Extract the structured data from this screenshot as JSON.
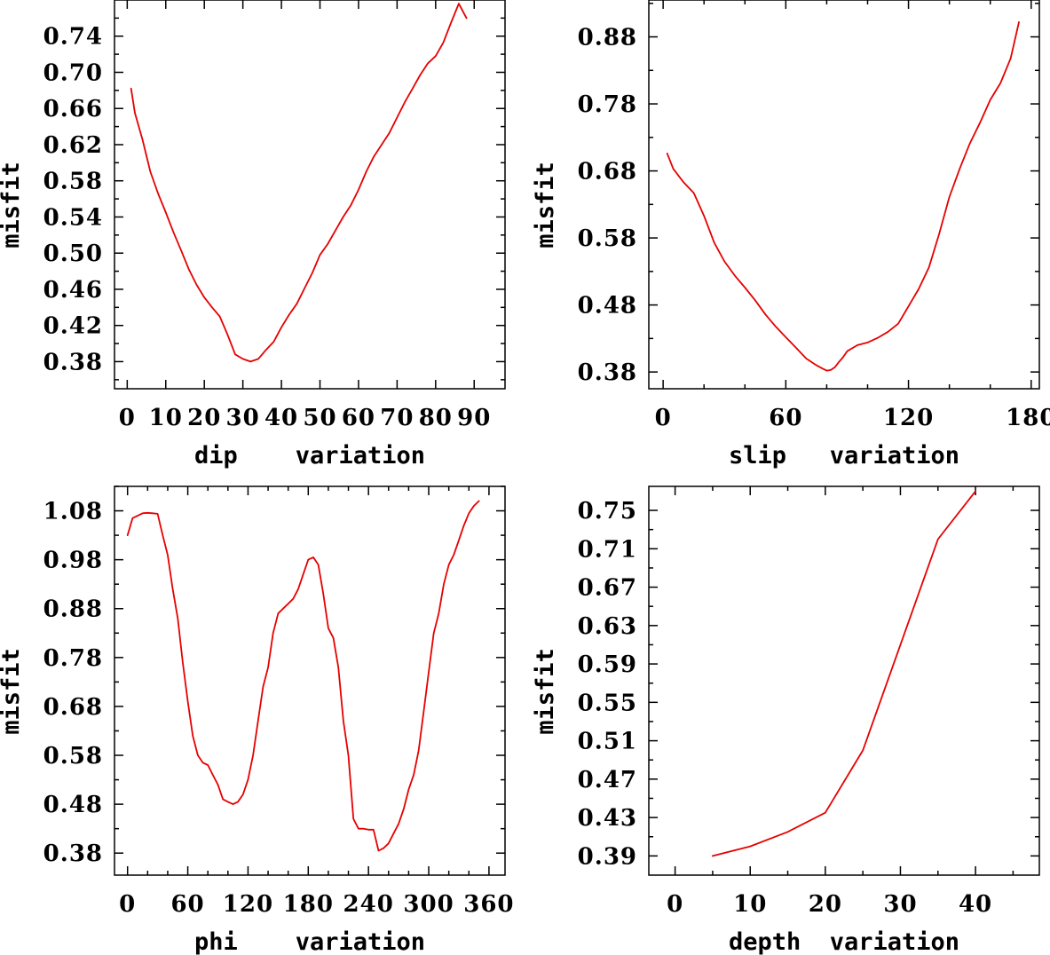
{
  "figure": {
    "line_color": "#e60000"
  },
  "chart_data": [
    {
      "type": "line",
      "title": "",
      "xlabel": "dip    variation",
      "ylabel": "misfit",
      "xlim": [
        -3.3,
        98
      ],
      "ylim": [
        0.35,
        0.78
      ],
      "xticks": [
        0,
        10,
        20,
        30,
        40,
        50,
        60,
        70,
        80,
        90
      ],
      "xtick_labels": [
        "0",
        "10",
        "20",
        "30",
        "40",
        "50",
        "60",
        "70",
        "80",
        "90"
      ],
      "xminor": [],
      "yticks": [
        0.38,
        0.42,
        0.46,
        0.5,
        0.54,
        0.58,
        0.62,
        0.66,
        0.7,
        0.74
      ],
      "ytick_labels": [
        "0.38",
        "0.42",
        "0.46",
        "0.50",
        "0.54",
        "0.58",
        "0.62",
        "0.66",
        "0.70",
        "0.74"
      ],
      "yminor": [
        0.36,
        0.4,
        0.44,
        0.48,
        0.52,
        0.56,
        0.6,
        0.64,
        0.68,
        0.72,
        0.76
      ],
      "series": [
        {
          "name": "misfit",
          "x": [
            1,
            2,
            4,
            6,
            8,
            10,
            12,
            14,
            16,
            18,
            20,
            22,
            24,
            26,
            28,
            30,
            32,
            34,
            36,
            38,
            40,
            42,
            44,
            46,
            48,
            50,
            52,
            54,
            56,
            58,
            60,
            62,
            64,
            66,
            68,
            70,
            72,
            74,
            76,
            78,
            80,
            82,
            84,
            86,
            88
          ],
          "y": [
            0.682,
            0.655,
            0.625,
            0.59,
            0.566,
            0.545,
            0.523,
            0.503,
            0.482,
            0.465,
            0.451,
            0.44,
            0.43,
            0.41,
            0.388,
            0.383,
            0.38,
            0.383,
            0.393,
            0.402,
            0.418,
            0.432,
            0.444,
            0.461,
            0.478,
            0.498,
            0.51,
            0.525,
            0.54,
            0.553,
            0.57,
            0.59,
            0.607,
            0.62,
            0.633,
            0.65,
            0.667,
            0.682,
            0.697,
            0.71,
            0.718,
            0.733,
            0.755,
            0.776,
            0.76
          ]
        }
      ]
    },
    {
      "type": "line",
      "title": "",
      "xlabel": "slip   variation",
      "ylabel": "misfit",
      "xlim": [
        -7,
        184
      ],
      "ylim": [
        0.355,
        0.935
      ],
      "xticks": [
        0,
        60,
        120,
        180
      ],
      "xtick_labels": [
        "0",
        "60",
        "120",
        "180"
      ],
      "xminor": [
        20,
        40,
        80,
        100,
        140,
        160
      ],
      "yticks": [
        0.38,
        0.48,
        0.58,
        0.68,
        0.78,
        0.88
      ],
      "ytick_labels": [
        "0.38",
        "0.48",
        "0.58",
        "0.68",
        "0.78",
        "0.88"
      ],
      "yminor": [
        0.43,
        0.53,
        0.63,
        0.73,
        0.83,
        0.93
      ],
      "series": [
        {
          "name": "misfit",
          "x": [
            2,
            5,
            10,
            15,
            20,
            25,
            30,
            35,
            40,
            45,
            50,
            55,
            60,
            65,
            70,
            75,
            78,
            80,
            82,
            84,
            86,
            88,
            90,
            95,
            100,
            105,
            110,
            115,
            120,
            125,
            130,
            135,
            140,
            145,
            150,
            155,
            160,
            165,
            170,
            174
          ],
          "y": [
            0.706,
            0.683,
            0.663,
            0.647,
            0.613,
            0.573,
            0.545,
            0.524,
            0.506,
            0.487,
            0.466,
            0.448,
            0.432,
            0.416,
            0.4,
            0.39,
            0.385,
            0.382,
            0.383,
            0.387,
            0.395,
            0.402,
            0.411,
            0.42,
            0.424,
            0.431,
            0.44,
            0.452,
            0.478,
            0.504,
            0.536,
            0.586,
            0.641,
            0.683,
            0.721,
            0.752,
            0.786,
            0.811,
            0.848,
            0.902
          ]
        }
      ]
    },
    {
      "type": "line",
      "title": "",
      "xlabel": "phi    variation",
      "ylabel": "misfit",
      "xlim": [
        -13,
        376
      ],
      "ylim": [
        0.335,
        1.13
      ],
      "xticks": [
        0,
        60,
        120,
        180,
        240,
        300,
        360
      ],
      "xtick_labels": [
        "0",
        "60",
        "120",
        "180",
        "240",
        "300",
        "360"
      ],
      "xminor": [
        20,
        40,
        80,
        100,
        140,
        160,
        200,
        220,
        260,
        280,
        320,
        340
      ],
      "yticks": [
        0.38,
        0.48,
        0.58,
        0.68,
        0.78,
        0.88,
        0.98,
        1.08
      ],
      "ytick_labels": [
        "0.38",
        "0.48",
        "0.58",
        "0.68",
        "0.78",
        "0.88",
        "0.98",
        "1.08"
      ],
      "yminor": [
        0.43,
        0.53,
        0.63,
        0.73,
        0.83,
        0.93,
        1.03,
        1.13
      ],
      "series": [
        {
          "name": "misfit",
          "x": [
            0,
            5,
            10,
            15,
            20,
            25,
            30,
            35,
            40,
            45,
            50,
            55,
            60,
            65,
            70,
            75,
            80,
            85,
            90,
            95,
            100,
            105,
            110,
            115,
            120,
            125,
            130,
            135,
            140,
            145,
            150,
            155,
            160,
            165,
            170,
            175,
            180,
            185,
            190,
            195,
            200,
            205,
            210,
            215,
            220,
            225,
            230,
            235,
            240,
            245,
            250,
            255,
            260,
            265,
            270,
            275,
            280,
            285,
            290,
            295,
            300,
            305,
            310,
            315,
            320,
            325,
            330,
            335,
            340,
            345,
            350
          ],
          "y": [
            1.03,
            1.065,
            1.07,
            1.075,
            1.076,
            1.075,
            1.074,
            1.03,
            0.99,
            0.92,
            0.86,
            0.77,
            0.69,
            0.62,
            0.58,
            0.565,
            0.56,
            0.54,
            0.52,
            0.49,
            0.485,
            0.48,
            0.485,
            0.5,
            0.53,
            0.58,
            0.65,
            0.72,
            0.76,
            0.83,
            0.87,
            0.88,
            0.89,
            0.9,
            0.92,
            0.95,
            0.98,
            0.985,
            0.97,
            0.91,
            0.84,
            0.82,
            0.76,
            0.65,
            0.58,
            0.45,
            0.43,
            0.43,
            0.428,
            0.428,
            0.385,
            0.39,
            0.4,
            0.42,
            0.44,
            0.47,
            0.51,
            0.54,
            0.59,
            0.67,
            0.75,
            0.83,
            0.87,
            0.93,
            0.97,
            0.99,
            1.02,
            1.05,
            1.075,
            1.09,
            1.1
          ]
        }
      ]
    },
    {
      "type": "line",
      "title": "",
      "xlabel": "depth  variation",
      "ylabel": "misfit",
      "xlim": [
        -3.5,
        48.5
      ],
      "ylim": [
        0.37,
        0.775
      ],
      "xticks": [
        0,
        10,
        20,
        30,
        40
      ],
      "xtick_labels": [
        "0",
        "10",
        "20",
        "30",
        "40"
      ],
      "xminor": [
        5,
        15,
        25,
        35,
        45
      ],
      "yticks": [
        0.39,
        0.43,
        0.47,
        0.51,
        0.55,
        0.59,
        0.63,
        0.67,
        0.71,
        0.75
      ],
      "ytick_labels": [
        "0.39",
        "0.43",
        "0.47",
        "0.51",
        "0.55",
        "0.59",
        "0.63",
        "0.67",
        "0.71",
        "0.75"
      ],
      "yminor": [
        0.41,
        0.45,
        0.49,
        0.53,
        0.57,
        0.61,
        0.65,
        0.69,
        0.73
      ],
      "series": [
        {
          "name": "misfit",
          "x": [
            5,
            10,
            15,
            20,
            25,
            30,
            35,
            40
          ],
          "y": [
            0.39,
            0.4,
            0.415,
            0.435,
            0.5,
            0.61,
            0.72,
            0.77
          ]
        }
      ]
    }
  ]
}
